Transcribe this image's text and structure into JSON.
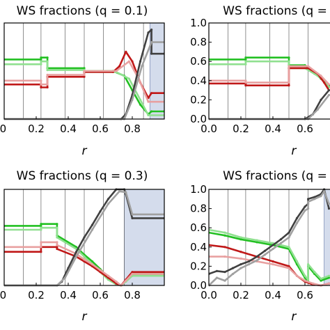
{
  "chart_data": [
    {
      "type": "line",
      "title": "WS fractions (q = 0.1)",
      "xlabel": "r",
      "ylabel": "",
      "xlim": [
        0,
        1
      ],
      "ylim": [
        0,
        1
      ],
      "xticks": [
        ".0",
        "0.2",
        "0.4",
        "0.6",
        "0.8"
      ],
      "yticks": [],
      "vlines": [
        0.12,
        0.23,
        0.38,
        0.5,
        0.62,
        0.75,
        0.87
      ],
      "shade": [
        0.91,
        1.0
      ],
      "colors": {
        "green": "#22c022",
        "lightgreen": "#90e090",
        "red": "#c01818",
        "pink": "#e8a0a0",
        "black": "#404040",
        "gray": "#a0a0a0"
      },
      "series": [
        {
          "color": "green",
          "x": [
            0,
            0.23,
            0.23,
            0.27,
            0.27,
            0.5,
            0.5,
            0.68,
            0.75,
            0.8,
            0.85,
            0.9,
            0.92,
            1
          ],
          "y": [
            0.62,
            0.62,
            0.64,
            0.64,
            0.53,
            0.53,
            0.5,
            0.5,
            0.45,
            0.3,
            0.15,
            0.05,
            0.08,
            0.08
          ]
        },
        {
          "color": "lightgreen",
          "x": [
            0,
            0.23,
            0.23,
            0.27,
            0.27,
            0.5,
            0.5,
            0.7,
            0.78,
            0.85,
            0.9,
            1
          ],
          "y": [
            0.57,
            0.57,
            0.6,
            0.6,
            0.51,
            0.51,
            0.49,
            0.49,
            0.42,
            0.2,
            0.04,
            0.04
          ]
        },
        {
          "color": "red",
          "x": [
            0,
            0.23,
            0.23,
            0.27,
            0.27,
            0.5,
            0.5,
            0.68,
            0.72,
            0.76,
            0.8,
            0.85,
            0.9,
            0.92,
            1
          ],
          "y": [
            0.36,
            0.36,
            0.33,
            0.33,
            0.44,
            0.44,
            0.49,
            0.49,
            0.55,
            0.7,
            0.6,
            0.38,
            0.22,
            0.27,
            0.27
          ]
        },
        {
          "color": "pink",
          "x": [
            0,
            0.23,
            0.23,
            0.27,
            0.27,
            0.5,
            0.5,
            0.7,
            0.78,
            0.84,
            0.9,
            1
          ],
          "y": [
            0.4,
            0.4,
            0.36,
            0.36,
            0.46,
            0.46,
            0.5,
            0.5,
            0.6,
            0.42,
            0.18,
            0.18
          ]
        },
        {
          "color": "black",
          "x": [
            0,
            0.73,
            0.76,
            0.8,
            0.85,
            0.9,
            0.92,
            0.92,
            1
          ],
          "y": [
            0,
            0,
            0.05,
            0.25,
            0.6,
            0.9,
            0.93,
            0.68,
            0.68
          ]
        },
        {
          "color": "gray",
          "x": [
            0,
            0.75,
            0.8,
            0.86,
            0.92,
            1
          ],
          "y": [
            0,
            0,
            0.2,
            0.55,
            0.8,
            0.8
          ]
        }
      ]
    },
    {
      "type": "line",
      "title": "WS fractions (q =",
      "xlabel": "r",
      "ylabel": "",
      "xlim": [
        0,
        1
      ],
      "ylim": [
        0,
        1
      ],
      "xticks": [
        "0.0",
        "0.2",
        "0.4",
        "0.6"
      ],
      "yticks": [
        "0.0",
        "0.2",
        "0.4",
        "0.6",
        "0.8",
        "1.0"
      ],
      "vlines": [
        0.12,
        0.23,
        0.38,
        0.5,
        0.62
      ],
      "shade": [],
      "colors": {
        "green": "#22c022",
        "lightgreen": "#90e090",
        "red": "#c01818",
        "pink": "#e8a0a0",
        "black": "#404040",
        "gray": "#a0a0a0"
      },
      "series": [
        {
          "color": "green",
          "x": [
            0,
            0.23,
            0.23,
            0.5,
            0.5,
            0.6,
            0.65,
            0.7,
            0.75
          ],
          "y": [
            0.62,
            0.62,
            0.64,
            0.64,
            0.56,
            0.56,
            0.5,
            0.42,
            0.35
          ]
        },
        {
          "color": "lightgreen",
          "x": [
            0,
            0.23,
            0.23,
            0.5,
            0.5,
            0.6,
            0.66,
            0.72,
            0.75
          ],
          "y": [
            0.57,
            0.57,
            0.6,
            0.6,
            0.53,
            0.53,
            0.47,
            0.4,
            0.33
          ]
        },
        {
          "color": "red",
          "x": [
            0,
            0.23,
            0.23,
            0.5,
            0.5,
            0.62,
            0.68,
            0.72,
            0.75
          ],
          "y": [
            0.37,
            0.37,
            0.35,
            0.35,
            0.53,
            0.53,
            0.47,
            0.38,
            0.3
          ]
        },
        {
          "color": "pink",
          "x": [
            0,
            0.23,
            0.23,
            0.5,
            0.5,
            0.62,
            0.7,
            0.75
          ],
          "y": [
            0.4,
            0.4,
            0.38,
            0.38,
            0.55,
            0.55,
            0.45,
            0.36
          ]
        },
        {
          "color": "black",
          "x": [
            0,
            0.6,
            0.65,
            0.7,
            0.75
          ],
          "y": [
            0,
            0,
            0.05,
            0.2,
            0.3
          ]
        },
        {
          "color": "gray",
          "x": [
            0,
            0.62,
            0.68,
            0.75
          ],
          "y": [
            0,
            0,
            0.1,
            0.25
          ]
        }
      ]
    },
    {
      "type": "line",
      "title": "WS fractions (q = 0.3)",
      "xlabel": "r",
      "ylabel": "",
      "xlim": [
        0,
        1
      ],
      "ylim": [
        0,
        1
      ],
      "xticks": [
        ".0",
        "0.2",
        "0.4",
        "0.6",
        "0.8"
      ],
      "yticks": [],
      "vlines": [
        0.12,
        0.23,
        0.38,
        0.5,
        0.62,
        0.75
      ],
      "shade": [
        0.75,
        1.0
      ],
      "colors": {
        "green": "#22c022",
        "lightgreen": "#90e090",
        "red": "#c01818",
        "pink": "#e8a0a0",
        "black": "#404040",
        "gray": "#a0a0a0"
      },
      "series": [
        {
          "color": "green",
          "x": [
            0,
            0.23,
            0.23,
            0.33,
            0.33,
            0.45,
            0.5,
            0.55,
            0.6,
            0.65,
            0.7,
            0.73,
            0.76,
            0.8,
            1
          ],
          "y": [
            0.62,
            0.62,
            0.64,
            0.64,
            0.52,
            0.4,
            0.32,
            0.25,
            0.17,
            0.08,
            0.02,
            0.0,
            0.05,
            0.12,
            0.12
          ]
        },
        {
          "color": "lightgreen",
          "x": [
            0,
            0.23,
            0.23,
            0.33,
            0.33,
            0.45,
            0.5,
            0.55,
            0.6,
            0.65,
            0.7,
            0.73,
            0.76,
            0.8,
            1
          ],
          "y": [
            0.58,
            0.58,
            0.6,
            0.6,
            0.5,
            0.38,
            0.3,
            0.22,
            0.14,
            0.06,
            0.01,
            0.0,
            0.04,
            0.1,
            0.1
          ]
        },
        {
          "color": "red",
          "x": [
            0,
            0.23,
            0.23,
            0.33,
            0.33,
            0.45,
            0.5,
            0.55,
            0.6,
            0.65,
            0.7,
            0.73,
            0.76,
            0.8,
            1
          ],
          "y": [
            0.35,
            0.35,
            0.4,
            0.4,
            0.38,
            0.3,
            0.25,
            0.2,
            0.14,
            0.08,
            0.02,
            0.0,
            0.06,
            0.14,
            0.14
          ]
        },
        {
          "color": "pink",
          "x": [
            0,
            0.23,
            0.23,
            0.33,
            0.33,
            0.45,
            0.5,
            0.55,
            0.6,
            0.65,
            0.7,
            0.73,
            0.76,
            0.8,
            1
          ],
          "y": [
            0.4,
            0.4,
            0.45,
            0.45,
            0.42,
            0.33,
            0.27,
            0.22,
            0.16,
            0.1,
            0.04,
            0.0,
            0.05,
            0.12,
            0.12
          ]
        },
        {
          "color": "black",
          "x": [
            0,
            0.33,
            0.36,
            0.4,
            0.45,
            0.5,
            0.55,
            0.6,
            0.65,
            0.7,
            0.75,
            0.76,
            0.8,
            1
          ],
          "y": [
            0,
            0,
            0.04,
            0.18,
            0.35,
            0.5,
            0.63,
            0.77,
            0.9,
            1.0,
            1.0,
            0.95,
            0.7,
            0.7
          ]
        },
        {
          "color": "gray",
          "x": [
            0,
            0.33,
            0.38,
            0.45,
            0.55,
            0.65,
            0.72,
            0.76,
            0.8,
            1
          ],
          "y": [
            0,
            0,
            0.08,
            0.3,
            0.58,
            0.85,
            0.98,
            0.97,
            0.74,
            0.74
          ]
        }
      ]
    },
    {
      "type": "line",
      "title": "WS fractions (q =",
      "xlabel": "r",
      "ylabel": "",
      "xlim": [
        0,
        1
      ],
      "ylim": [
        0,
        1
      ],
      "xticks": [
        "0.0",
        "0.2",
        "0.4",
        "0.6"
      ],
      "yticks": [
        "0.0",
        "0.2",
        "0.4",
        "0.6",
        "0.8",
        "1.0"
      ],
      "vlines": [
        0.12,
        0.23,
        0.38,
        0.5,
        0.62
      ],
      "shade": [
        0.72,
        1.0
      ],
      "colors": {
        "green": "#22c022",
        "lightgreen": "#90e090",
        "red": "#c01818",
        "pink": "#e8a0a0",
        "black": "#404040",
        "gray": "#a0a0a0"
      },
      "series": [
        {
          "color": "green",
          "x": [
            0,
            0.1,
            0.2,
            0.3,
            0.4,
            0.5,
            0.55,
            0.6,
            0.62,
            0.62,
            0.66,
            0.7,
            0.75
          ],
          "y": [
            0.55,
            0.52,
            0.48,
            0.45,
            0.42,
            0.38,
            0.22,
            0.08,
            0.04,
            0.2,
            0.12,
            0.05,
            0.08
          ]
        },
        {
          "color": "lightgreen",
          "x": [
            0,
            0.1,
            0.2,
            0.3,
            0.4,
            0.5,
            0.55,
            0.6,
            0.62,
            0.62,
            0.66,
            0.7,
            0.75
          ],
          "y": [
            0.58,
            0.55,
            0.5,
            0.47,
            0.44,
            0.4,
            0.25,
            0.1,
            0.06,
            0.22,
            0.14,
            0.07,
            0.1
          ]
        },
        {
          "color": "red",
          "x": [
            0,
            0.1,
            0.2,
            0.3,
            0.4,
            0.5,
            0.55,
            0.6,
            0.65,
            0.7,
            0.75
          ],
          "y": [
            0.42,
            0.4,
            0.35,
            0.3,
            0.25,
            0.2,
            0.1,
            0.04,
            0.01,
            0.0,
            0.02
          ]
        },
        {
          "color": "pink",
          "x": [
            0,
            0.1,
            0.2,
            0.3,
            0.4,
            0.5,
            0.55,
            0.6,
            0.65,
            0.7,
            0.75
          ],
          "y": [
            0.3,
            0.3,
            0.28,
            0.25,
            0.22,
            0.18,
            0.1,
            0.05,
            0.02,
            0.0,
            0.02
          ]
        },
        {
          "color": "black",
          "x": [
            0,
            0.05,
            0.1,
            0.15,
            0.2,
            0.25,
            0.3,
            0.35,
            0.4,
            0.45,
            0.5,
            0.55,
            0.6,
            0.62,
            0.62,
            0.66,
            0.7,
            0.72,
            0.75
          ],
          "y": [
            0.12,
            0.15,
            0.14,
            0.18,
            0.22,
            0.25,
            0.3,
            0.36,
            0.42,
            0.48,
            0.55,
            0.7,
            0.82,
            0.85,
            0.9,
            0.92,
            0.95,
            1.0,
            0.8
          ]
        },
        {
          "color": "gray",
          "x": [
            0,
            0.05,
            0.1,
            0.15,
            0.2,
            0.25,
            0.3,
            0.35,
            0.4,
            0.45,
            0.5,
            0.55,
            0.6,
            0.62,
            0.62,
            0.66,
            0.7,
            0.72,
            0.75
          ],
          "y": [
            0.0,
            0.08,
            0.05,
            0.12,
            0.18,
            0.22,
            0.26,
            0.32,
            0.38,
            0.44,
            0.5,
            0.65,
            0.78,
            0.8,
            0.87,
            0.9,
            0.93,
            0.98,
            0.85
          ]
        }
      ]
    }
  ]
}
